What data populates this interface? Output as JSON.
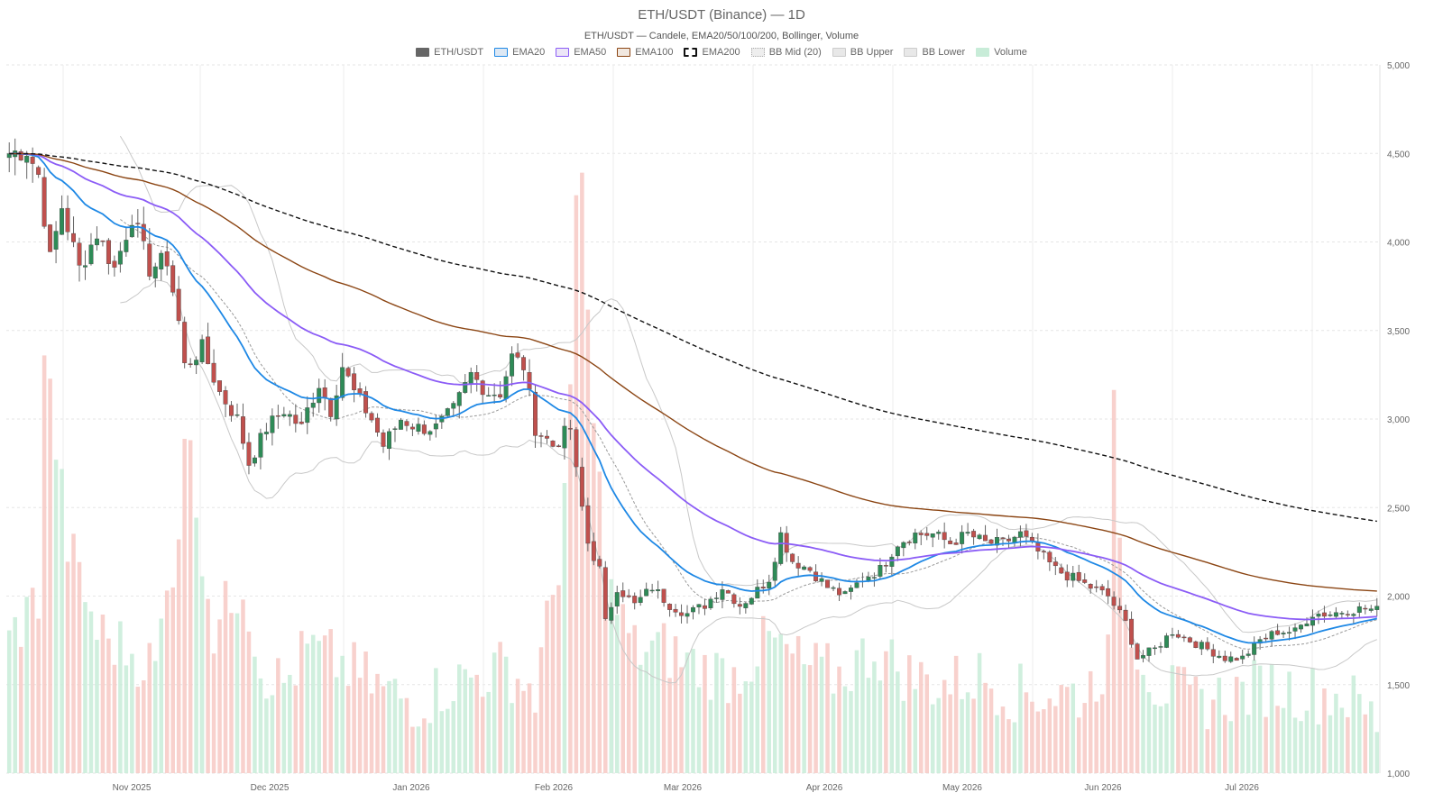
{
  "chart_data": {
    "type": "candlestick",
    "title": "ETH/USDT (Binance) — 1D",
    "subtitle": "ETH/USDT — Candele, EMA20/50/100/200, Bollinger, Volume",
    "legend": [
      {
        "label": "ETH/USDT",
        "color": "#666666",
        "fill": "#666666",
        "style": "solid"
      },
      {
        "label": "EMA20",
        "color": "#1e88e5",
        "fill": "#dde8f4",
        "style": "solid"
      },
      {
        "label": "EMA50",
        "color": "#8b5cf6",
        "fill": "#ece6f7",
        "style": "solid"
      },
      {
        "label": "EMA100",
        "color": "#8b4513",
        "fill": "#f1e8e0",
        "style": "solid"
      },
      {
        "label": "EMA200",
        "color": "#111111",
        "fill": "#ffffff",
        "style": "dashed"
      },
      {
        "label": "BB Mid (20)",
        "color": "#aaaaaa",
        "fill": "#eeeeee",
        "style": "dotted"
      },
      {
        "label": "BB Upper",
        "color": "#cccccc",
        "fill": "#e8e8e8",
        "style": "solid"
      },
      {
        "label": "BB Lower",
        "color": "#cccccc",
        "fill": "#e8e8e8",
        "style": "solid"
      },
      {
        "label": "Volume",
        "color": "#c8ecd8",
        "fill": "#c8ecd8",
        "style": "solid"
      }
    ],
    "y_axis": {
      "min": 1000,
      "max": 5000,
      "ticks": [
        "1,000",
        "1,500",
        "2,000",
        "2,500",
        "3,000",
        "3,500",
        "4,000",
        "4,500",
        "5,000"
      ],
      "position": "right"
    },
    "x_axis": {
      "labels": [
        "Nov 2025",
        "Dec 2025",
        "Jan 2026",
        "Feb 2026",
        "Mar 2026",
        "Apr 2026",
        "May 2026",
        "Jun 2026",
        "Jul 2026"
      ]
    },
    "grid": true,
    "colors": {
      "up": "#2e8b57",
      "down": "#c0504d",
      "vol_up": "#c8ecd8",
      "vol_down": "#f7c9c4"
    },
    "price_anchors": [
      [
        0,
        4500
      ],
      [
        3,
        4520
      ],
      [
        5,
        4380
      ],
      [
        7,
        3900
      ],
      [
        9,
        4200
      ],
      [
        12,
        3850
      ],
      [
        15,
        4050
      ],
      [
        18,
        3850
      ],
      [
        21,
        4150
      ],
      [
        24,
        3850
      ],
      [
        27,
        3900
      ],
      [
        29,
        3550
      ],
      [
        30,
        3300
      ],
      [
        33,
        3400
      ],
      [
        36,
        3150
      ],
      [
        39,
        3000
      ],
      [
        41,
        2750
      ],
      [
        44,
        2950
      ],
      [
        47,
        3050
      ],
      [
        50,
        2950
      ],
      [
        51,
        3050
      ],
      [
        53,
        3200
      ],
      [
        55,
        3050
      ],
      [
        57,
        3300
      ],
      [
        59,
        3150
      ],
      [
        62,
        3000
      ],
      [
        64,
        2850
      ],
      [
        67,
        3000
      ],
      [
        70,
        2950
      ],
      [
        73,
        2950
      ],
      [
        76,
        3050
      ],
      [
        79,
        3250
      ],
      [
        82,
        3150
      ],
      [
        84,
        3150
      ],
      [
        86,
        3350
      ],
      [
        88,
        3300
      ],
      [
        90,
        2950
      ],
      [
        93,
        2850
      ],
      [
        96,
        2950
      ],
      [
        97,
        2700
      ],
      [
        99,
        2300
      ],
      [
        101,
        2150
      ],
      [
        102,
        1850
      ],
      [
        104,
        2050
      ],
      [
        107,
        1950
      ],
      [
        110,
        2050
      ],
      [
        113,
        1950
      ],
      [
        116,
        1900
      ],
      [
        119,
        1950
      ],
      [
        122,
        2050
      ],
      [
        125,
        1950
      ],
      [
        127,
        2000
      ],
      [
        130,
        2100
      ],
      [
        132,
        2350
      ],
      [
        134,
        2200
      ],
      [
        137,
        2150
      ],
      [
        140,
        2050
      ],
      [
        143,
        2000
      ],
      [
        146,
        2100
      ],
      [
        149,
        2150
      ],
      [
        152,
        2300
      ],
      [
        155,
        2350
      ],
      [
        158,
        2350
      ],
      [
        161,
        2300
      ],
      [
        164,
        2350
      ],
      [
        167,
        2300
      ],
      [
        170,
        2300
      ],
      [
        173,
        2350
      ],
      [
        176,
        2250
      ],
      [
        179,
        2150
      ],
      [
        182,
        2100
      ],
      [
        185,
        2050
      ],
      [
        188,
        2000
      ],
      [
        191,
        1850
      ],
      [
        193,
        1650
      ],
      [
        196,
        1700
      ],
      [
        199,
        1800
      ],
      [
        202,
        1750
      ],
      [
        205,
        1700
      ],
      [
        208,
        1650
      ],
      [
        211,
        1650
      ],
      [
        214,
        1750
      ],
      [
        217,
        1800
      ],
      [
        220,
        1800
      ],
      [
        223,
        1900
      ],
      [
        226,
        1900
      ],
      [
        229,
        1920
      ],
      [
        232,
        1930
      ],
      [
        234,
        1920
      ]
    ],
    "volume_anchors": [
      [
        0,
        1750
      ],
      [
        5,
        2000
      ],
      [
        6,
        3400
      ],
      [
        10,
        2300
      ],
      [
        15,
        1800
      ],
      [
        20,
        1700
      ],
      [
        25,
        1600
      ],
      [
        29,
        2400
      ],
      [
        30,
        3000
      ],
      [
        35,
        1800
      ],
      [
        40,
        2100
      ],
      [
        43,
        1600
      ],
      [
        47,
        1500
      ],
      [
        51,
        1700
      ],
      [
        55,
        1650
      ],
      [
        60,
        1550
      ],
      [
        65,
        1450
      ],
      [
        70,
        1400
      ],
      [
        75,
        1500
      ],
      [
        80,
        1550
      ],
      [
        85,
        1600
      ],
      [
        90,
        1450
      ],
      [
        94,
        2200
      ],
      [
        96,
        3100
      ],
      [
        97,
        4100
      ],
      [
        98,
        4350
      ],
      [
        100,
        2900
      ],
      [
        103,
        2000
      ],
      [
        107,
        1700
      ],
      [
        112,
        1700
      ],
      [
        118,
        1600
      ],
      [
        124,
        1550
      ],
      [
        130,
        1750
      ],
      [
        136,
        1600
      ],
      [
        142,
        1550
      ],
      [
        148,
        1700
      ],
      [
        154,
        1550
      ],
      [
        160,
        1500
      ],
      [
        166,
        1550
      ],
      [
        172,
        1450
      ],
      [
        178,
        1450
      ],
      [
        184,
        1450
      ],
      [
        188,
        1650
      ],
      [
        189,
        3000
      ],
      [
        191,
        1900
      ],
      [
        196,
        1500
      ],
      [
        203,
        1400
      ],
      [
        210,
        1450
      ],
      [
        216,
        1500
      ],
      [
        222,
        1450
      ],
      [
        228,
        1450
      ],
      [
        234,
        1300
      ]
    ]
  }
}
